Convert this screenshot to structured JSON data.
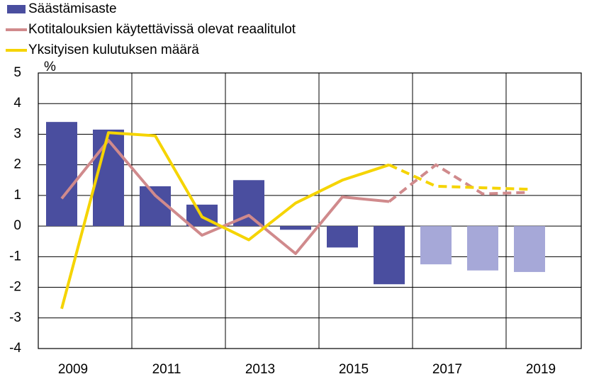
{
  "chart_data": {
    "type": "bar",
    "y_label": "%",
    "categories": [
      "2009",
      null,
      "2011",
      null,
      "2013",
      null,
      "2015",
      null,
      "2017",
      null,
      "2019"
    ],
    "ylim": [
      -4,
      5
    ],
    "yticks": [
      -4,
      -3,
      -2,
      -1,
      0,
      1,
      2,
      3,
      4,
      5
    ],
    "grid": true,
    "forecast_from_index": 7,
    "series": [
      {
        "name": "Säästämisaste",
        "type": "bar",
        "color": "#4a4e9f",
        "forecast_color": "#a6a8d8",
        "values": [
          3.4,
          3.15,
          1.3,
          0.7,
          1.5,
          -0.12,
          -0.7,
          -1.9,
          -1.25,
          -1.45,
          -1.5
        ]
      },
      {
        "name": "Kotitalouksien käytettävissä olevat reaalitulot",
        "type": "line",
        "color": "#d08a8c",
        "values": [
          0.9,
          2.8,
          1.0,
          -0.3,
          0.35,
          -0.9,
          0.95,
          0.8,
          2.0,
          1.05,
          1.1
        ]
      },
      {
        "name": "Yksityisen kulutuksen määrä",
        "type": "line",
        "color": "#f5d400",
        "values": [
          -2.7,
          3.05,
          2.95,
          0.3,
          -0.45,
          0.75,
          1.5,
          2.0,
          1.3,
          1.25,
          1.2
        ]
      }
    ]
  }
}
